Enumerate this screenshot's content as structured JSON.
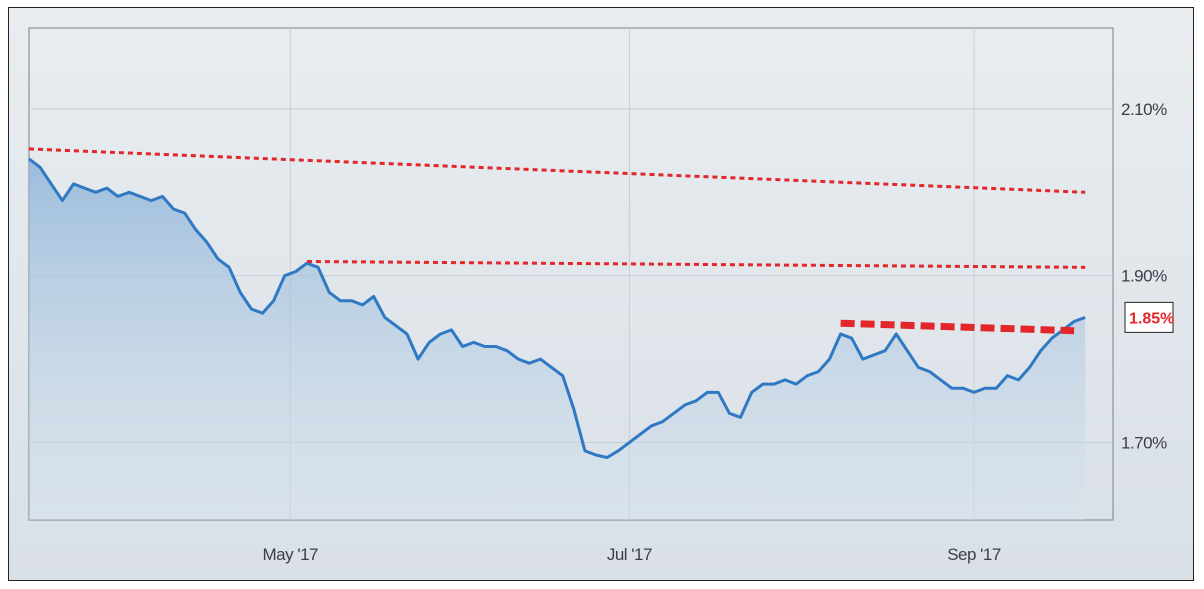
{
  "colors": {
    "line": "#2f78c4",
    "area_top": "#8fb4d8",
    "area_bottom": "#d6e3ef",
    "resistance": "#e3262a",
    "grid": "#c7ced5",
    "axis_text": "#3a3f46"
  },
  "chart_data": {
    "type": "area",
    "title": "",
    "xlabel": "",
    "ylabel": "",
    "x_range": [
      "2017-03-15",
      "2017-09-26"
    ],
    "ylim": [
      1.607,
      2.197
    ],
    "y_ticks": [
      {
        "value": 2.1,
        "label": "2.10%"
      },
      {
        "value": 1.9,
        "label": "1.90%"
      },
      {
        "value": 1.7,
        "label": "1.70%"
      }
    ],
    "x_ticks": [
      {
        "date": "2017-05-01",
        "label": "May '17"
      },
      {
        "date": "2017-07-01",
        "label": "Jul '17"
      },
      {
        "date": "2017-09-01",
        "label": "Sep '17"
      }
    ],
    "last_value_label": "1.85%",
    "series": [
      {
        "values": [
          [
            "2017-03-15",
            2.04
          ],
          [
            "2017-03-17",
            2.03
          ],
          [
            "2017-03-19",
            2.01
          ],
          [
            "2017-03-21",
            1.99
          ],
          [
            "2017-03-23",
            2.01
          ],
          [
            "2017-03-25",
            2.005
          ],
          [
            "2017-03-27",
            2.0
          ],
          [
            "2017-03-29",
            2.005
          ],
          [
            "2017-03-31",
            1.995
          ],
          [
            "2017-04-02",
            2.0
          ],
          [
            "2017-04-04",
            1.995
          ],
          [
            "2017-04-06",
            1.99
          ],
          [
            "2017-04-08",
            1.995
          ],
          [
            "2017-04-10",
            1.98
          ],
          [
            "2017-04-12",
            1.975
          ],
          [
            "2017-04-14",
            1.955
          ],
          [
            "2017-04-16",
            1.94
          ],
          [
            "2017-04-18",
            1.92
          ],
          [
            "2017-04-20",
            1.91
          ],
          [
            "2017-04-22",
            1.88
          ],
          [
            "2017-04-24",
            1.86
          ],
          [
            "2017-04-26",
            1.855
          ],
          [
            "2017-04-28",
            1.87
          ],
          [
            "2017-04-30",
            1.9
          ],
          [
            "2017-05-02",
            1.905
          ],
          [
            "2017-05-04",
            1.915
          ],
          [
            "2017-05-06",
            1.91
          ],
          [
            "2017-05-08",
            1.88
          ],
          [
            "2017-05-10",
            1.87
          ],
          [
            "2017-05-12",
            1.87
          ],
          [
            "2017-05-14",
            1.865
          ],
          [
            "2017-05-16",
            1.875
          ],
          [
            "2017-05-18",
            1.85
          ],
          [
            "2017-05-20",
            1.84
          ],
          [
            "2017-05-22",
            1.83
          ],
          [
            "2017-05-24",
            1.8
          ],
          [
            "2017-05-26",
            1.82
          ],
          [
            "2017-05-28",
            1.83
          ],
          [
            "2017-05-30",
            1.835
          ],
          [
            "2017-06-01",
            1.815
          ],
          [
            "2017-06-03",
            1.82
          ],
          [
            "2017-06-05",
            1.815
          ],
          [
            "2017-06-07",
            1.815
          ],
          [
            "2017-06-09",
            1.81
          ],
          [
            "2017-06-11",
            1.8
          ],
          [
            "2017-06-13",
            1.795
          ],
          [
            "2017-06-15",
            1.8
          ],
          [
            "2017-06-17",
            1.79
          ],
          [
            "2017-06-19",
            1.78
          ],
          [
            "2017-06-21",
            1.74
          ],
          [
            "2017-06-23",
            1.69
          ],
          [
            "2017-06-25",
            1.685
          ],
          [
            "2017-06-27",
            1.682
          ],
          [
            "2017-06-29",
            1.69
          ],
          [
            "2017-07-01",
            1.7
          ],
          [
            "2017-07-03",
            1.71
          ],
          [
            "2017-07-05",
            1.72
          ],
          [
            "2017-07-07",
            1.725
          ],
          [
            "2017-07-09",
            1.735
          ],
          [
            "2017-07-11",
            1.745
          ],
          [
            "2017-07-13",
            1.75
          ],
          [
            "2017-07-15",
            1.76
          ],
          [
            "2017-07-17",
            1.76
          ],
          [
            "2017-07-19",
            1.735
          ],
          [
            "2017-07-21",
            1.73
          ],
          [
            "2017-07-23",
            1.76
          ],
          [
            "2017-07-25",
            1.77
          ],
          [
            "2017-07-27",
            1.77
          ],
          [
            "2017-07-29",
            1.775
          ],
          [
            "2017-07-31",
            1.77
          ],
          [
            "2017-08-02",
            1.78
          ],
          [
            "2017-08-04",
            1.785
          ],
          [
            "2017-08-06",
            1.8
          ],
          [
            "2017-08-08",
            1.83
          ],
          [
            "2017-08-10",
            1.825
          ],
          [
            "2017-08-12",
            1.8
          ],
          [
            "2017-08-14",
            1.805
          ],
          [
            "2017-08-16",
            1.81
          ],
          [
            "2017-08-18",
            1.83
          ],
          [
            "2017-08-20",
            1.81
          ],
          [
            "2017-08-22",
            1.79
          ],
          [
            "2017-08-24",
            1.785
          ],
          [
            "2017-08-26",
            1.775
          ],
          [
            "2017-08-28",
            1.765
          ],
          [
            "2017-08-30",
            1.765
          ],
          [
            "2017-09-01",
            1.76
          ],
          [
            "2017-09-03",
            1.765
          ],
          [
            "2017-09-05",
            1.765
          ],
          [
            "2017-09-07",
            1.78
          ],
          [
            "2017-09-09",
            1.775
          ],
          [
            "2017-09-11",
            1.79
          ],
          [
            "2017-09-13",
            1.81
          ],
          [
            "2017-09-15",
            1.825
          ],
          [
            "2017-09-17",
            1.835
          ],
          [
            "2017-09-19",
            1.845
          ],
          [
            "2017-09-21",
            1.85
          ]
        ]
      }
    ],
    "annotations": [
      {
        "type": "dotted-trendline",
        "from": [
          "2017-03-15",
          2.052
        ],
        "to": [
          "2017-09-21",
          2.0
        ]
      },
      {
        "type": "dotted-trendline",
        "from": [
          "2017-05-04",
          1.917
        ],
        "to": [
          "2017-09-21",
          1.91
        ]
      },
      {
        "type": "dashed-trendline",
        "from": [
          "2017-08-08",
          1.843
        ],
        "to": [
          "2017-09-19",
          1.834
        ]
      }
    ]
  }
}
